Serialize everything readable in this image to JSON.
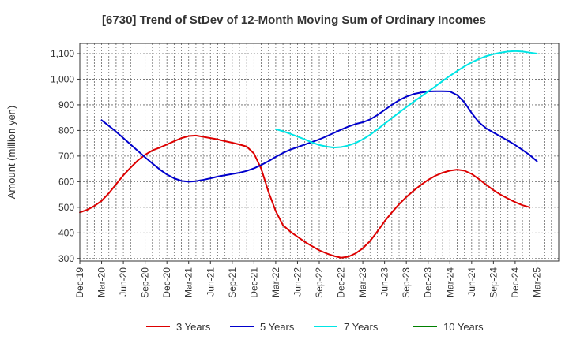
{
  "chart_data": {
    "type": "line",
    "title": "[6730]  Trend of StDev of 12-Month Moving Sum of Ordinary Incomes",
    "xlabel": "",
    "ylabel": "Amount (million yen)",
    "ylim": [
      290,
      1140
    ],
    "yticks": [
      300,
      400,
      500,
      600,
      700,
      800,
      900,
      "1,000",
      "1,100"
    ],
    "yticks_values": [
      300,
      400,
      500,
      600,
      700,
      800,
      900,
      1000,
      1100
    ],
    "x_tick_labels": [
      "Dec-19",
      "Mar-20",
      "Jun-20",
      "Sep-20",
      "Dec-20",
      "Mar-21",
      "Jun-21",
      "Sep-21",
      "Dec-21",
      "Mar-22",
      "Jun-22",
      "Sep-22",
      "Dec-22",
      "Mar-23",
      "Jun-23",
      "Sep-23",
      "Dec-23",
      "Mar-24",
      "Jun-24",
      "Sep-24",
      "Dec-24",
      "Mar-25"
    ],
    "grid": true,
    "legend_position": "bottom",
    "series": [
      {
        "name": "3 Years",
        "color": "#dd0000",
        "points": [
          [
            0,
            480
          ],
          [
            1,
            490
          ],
          [
            2,
            505
          ],
          [
            3,
            525
          ],
          [
            4,
            555
          ],
          [
            5,
            590
          ],
          [
            6,
            625
          ],
          [
            7,
            655
          ],
          [
            8,
            683
          ],
          [
            9,
            705
          ],
          [
            10,
            722
          ],
          [
            11,
            733
          ],
          [
            12,
            745
          ],
          [
            13,
            758
          ],
          [
            14,
            770
          ],
          [
            15,
            778
          ],
          [
            16,
            780
          ],
          [
            17,
            775
          ],
          [
            18,
            770
          ],
          [
            19,
            765
          ],
          [
            20,
            758
          ],
          [
            21,
            752
          ],
          [
            22,
            745
          ],
          [
            23,
            737
          ],
          [
            24,
            710
          ],
          [
            25,
            650
          ],
          [
            26,
            560
          ],
          [
            27,
            485
          ],
          [
            28,
            430
          ],
          [
            29,
            405
          ],
          [
            30,
            385
          ],
          [
            31,
            365
          ],
          [
            32,
            348
          ],
          [
            33,
            332
          ],
          [
            34,
            320
          ],
          [
            35,
            310
          ],
          [
            36,
            303
          ],
          [
            37,
            307
          ],
          [
            38,
            320
          ],
          [
            39,
            340
          ],
          [
            40,
            368
          ],
          [
            41,
            405
          ],
          [
            42,
            445
          ],
          [
            43,
            480
          ],
          [
            44,
            512
          ],
          [
            45,
            540
          ],
          [
            46,
            565
          ],
          [
            47,
            587
          ],
          [
            48,
            607
          ],
          [
            49,
            623
          ],
          [
            50,
            635
          ],
          [
            51,
            643
          ],
          [
            52,
            647
          ],
          [
            53,
            643
          ],
          [
            54,
            630
          ],
          [
            55,
            610
          ],
          [
            56,
            588
          ],
          [
            57,
            567
          ],
          [
            58,
            549
          ],
          [
            59,
            534
          ],
          [
            60,
            520
          ],
          [
            61,
            508
          ],
          [
            62,
            500
          ]
        ]
      },
      {
        "name": "5 Years",
        "color": "#0000cc",
        "points": [
          [
            3,
            840
          ],
          [
            4,
            818
          ],
          [
            5,
            795
          ],
          [
            6,
            770
          ],
          [
            7,
            745
          ],
          [
            8,
            720
          ],
          [
            9,
            695
          ],
          [
            10,
            671
          ],
          [
            11,
            648
          ],
          [
            12,
            628
          ],
          [
            13,
            613
          ],
          [
            14,
            603
          ],
          [
            15,
            600
          ],
          [
            16,
            602
          ],
          [
            17,
            607
          ],
          [
            18,
            613
          ],
          [
            19,
            620
          ],
          [
            20,
            625
          ],
          [
            21,
            630
          ],
          [
            22,
            635
          ],
          [
            23,
            642
          ],
          [
            24,
            652
          ],
          [
            25,
            665
          ],
          [
            26,
            680
          ],
          [
            27,
            697
          ],
          [
            28,
            712
          ],
          [
            29,
            725
          ],
          [
            30,
            735
          ],
          [
            31,
            745
          ],
          [
            32,
            755
          ],
          [
            33,
            765
          ],
          [
            34,
            777
          ],
          [
            35,
            790
          ],
          [
            36,
            803
          ],
          [
            37,
            815
          ],
          [
            38,
            825
          ],
          [
            39,
            832
          ],
          [
            40,
            843
          ],
          [
            41,
            860
          ],
          [
            42,
            880
          ],
          [
            43,
            900
          ],
          [
            44,
            918
          ],
          [
            45,
            932
          ],
          [
            46,
            942
          ],
          [
            47,
            948
          ],
          [
            48,
            952
          ],
          [
            49,
            953
          ],
          [
            50,
            953
          ],
          [
            51,
            952
          ],
          [
            52,
            938
          ],
          [
            53,
            910
          ],
          [
            54,
            868
          ],
          [
            55,
            832
          ],
          [
            56,
            808
          ],
          [
            57,
            792
          ],
          [
            58,
            776
          ],
          [
            59,
            760
          ],
          [
            60,
            743
          ],
          [
            61,
            724
          ],
          [
            62,
            704
          ],
          [
            63,
            680
          ]
        ]
      },
      {
        "name": "7 Years",
        "color": "#00e5e5",
        "points": [
          [
            27,
            805
          ],
          [
            28,
            797
          ],
          [
            29,
            787
          ],
          [
            30,
            776
          ],
          [
            31,
            765
          ],
          [
            32,
            753
          ],
          [
            33,
            743
          ],
          [
            34,
            737
          ],
          [
            35,
            733
          ],
          [
            36,
            735
          ],
          [
            37,
            741
          ],
          [
            38,
            751
          ],
          [
            39,
            765
          ],
          [
            40,
            783
          ],
          [
            41,
            804
          ],
          [
            42,
            826
          ],
          [
            43,
            848
          ],
          [
            44,
            870
          ],
          [
            45,
            891
          ],
          [
            46,
            912
          ],
          [
            47,
            932
          ],
          [
            48,
            952
          ],
          [
            49,
            972
          ],
          [
            50,
            993
          ],
          [
            51,
            1013
          ],
          [
            52,
            1032
          ],
          [
            53,
            1050
          ],
          [
            54,
            1066
          ],
          [
            55,
            1079
          ],
          [
            56,
            1090
          ],
          [
            57,
            1098
          ],
          [
            58,
            1104
          ],
          [
            59,
            1108
          ],
          [
            60,
            1110
          ],
          [
            61,
            1108
          ],
          [
            62,
            1104
          ],
          [
            63,
            1100
          ]
        ]
      },
      {
        "name": "10 Years",
        "color": "#008000",
        "points": []
      }
    ]
  }
}
